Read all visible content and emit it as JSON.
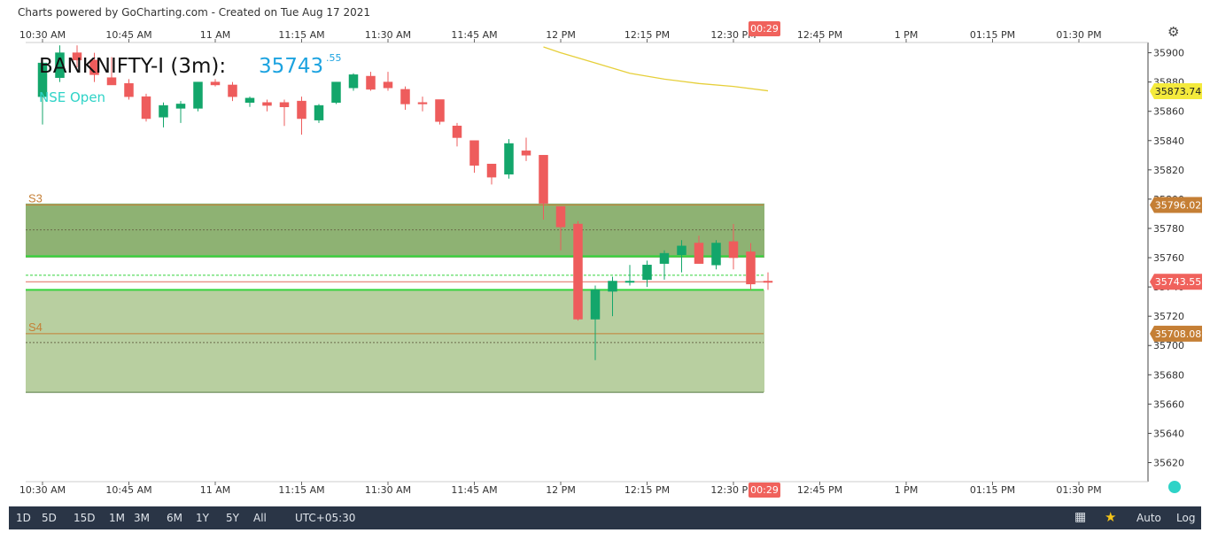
{
  "credit": "Charts powered by GoCharting.com - Created on Tue Aug 17 2021",
  "symbol": "BANKNIFTY-I (3m):",
  "price_main": "35743",
  "price_dec": ".55",
  "session_label": "NSE Open",
  "countdown": "00:29",
  "colors": {
    "up": "#13a66b",
    "down": "#ee5c5c",
    "ema": "#e6cf3a",
    "band": "#7aa55b",
    "level": "#c57f35",
    "grid_green": "#34d43c"
  },
  "toolbar": {
    "ranges": [
      "1D",
      "5D",
      "15D",
      "1M",
      "3M",
      "6M",
      "1Y",
      "5Y",
      "All"
    ],
    "timezone": "UTC+05:30",
    "auto": "Auto",
    "log": "Log",
    "grid_icon": "grid-icon",
    "star_icon": "star-icon"
  },
  "chart_data": {
    "type": "candlestick",
    "interval": "3m",
    "x_ticks": [
      "10:30 AM",
      "10:45 AM",
      "11 AM",
      "11:15 AM",
      "11:30 AM",
      "11:45 AM",
      "12 PM",
      "12:15 PM",
      "12:30 PM",
      "12:45 PM",
      "1 PM",
      "01:15 PM",
      "01:30 PM"
    ],
    "y_ticks": [
      35900,
      35880,
      35860,
      35840,
      35820,
      35800,
      35780,
      35760,
      35740,
      35720,
      35700,
      35680,
      35660,
      35640,
      35620
    ],
    "ylim": [
      35607,
      35907
    ],
    "candles": [
      {
        "t": "10:30",
        "o": 35870,
        "h": 35895,
        "l": 35851,
        "c": 35893
      },
      {
        "t": "10:33",
        "o": 35883,
        "h": 35905,
        "l": 35880,
        "c": 35900
      },
      {
        "t": "10:36",
        "o": 35900,
        "h": 35905,
        "l": 35890,
        "c": 35895
      },
      {
        "t": "10:39",
        "o": 35895,
        "h": 35900,
        "l": 35880,
        "c": 35885
      },
      {
        "t": "10:42",
        "o": 35883,
        "h": 35897,
        "l": 35878,
        "c": 35878
      },
      {
        "t": "10:45",
        "o": 35879,
        "h": 35882,
        "l": 35868,
        "c": 35870
      },
      {
        "t": "10:48",
        "o": 35870,
        "h": 35872,
        "l": 35853,
        "c": 35855
      },
      {
        "t": "10:51",
        "o": 35856,
        "h": 35866,
        "l": 35849,
        "c": 35864
      },
      {
        "t": "10:54",
        "o": 35862,
        "h": 35867,
        "l": 35852,
        "c": 35865
      },
      {
        "t": "10:57",
        "o": 35862,
        "h": 35880,
        "l": 35860,
        "c": 35880
      },
      {
        "t": "11:00",
        "o": 35880,
        "h": 35882,
        "l": 35877,
        "c": 35878
      },
      {
        "t": "11:03",
        "o": 35878,
        "h": 35880,
        "l": 35867,
        "c": 35870
      },
      {
        "t": "11:06",
        "o": 35866,
        "h": 35870,
        "l": 35863,
        "c": 35869
      },
      {
        "t": "11:09",
        "o": 35866,
        "h": 35868,
        "l": 35860,
        "c": 35864
      },
      {
        "t": "11:12",
        "o": 35866,
        "h": 35868,
        "l": 35850,
        "c": 35863
      },
      {
        "t": "11:15",
        "o": 35867,
        "h": 35870,
        "l": 35844,
        "c": 35855
      },
      {
        "t": "11:18",
        "o": 35854,
        "h": 35865,
        "l": 35852,
        "c": 35864
      },
      {
        "t": "11:21",
        "o": 35866,
        "h": 35880,
        "l": 35865,
        "c": 35880
      },
      {
        "t": "11:24",
        "o": 35876,
        "h": 35886,
        "l": 35874,
        "c": 35885
      },
      {
        "t": "11:27",
        "o": 35884,
        "h": 35887,
        "l": 35874,
        "c": 35875
      },
      {
        "t": "11:30",
        "o": 35880,
        "h": 35887,
        "l": 35874,
        "c": 35876
      },
      {
        "t": "11:33",
        "o": 35875,
        "h": 35877,
        "l": 35861,
        "c": 35865
      },
      {
        "t": "11:36",
        "o": 35866,
        "h": 35870,
        "l": 35860,
        "c": 35865
      },
      {
        "t": "11:39",
        "o": 35868,
        "h": 35868,
        "l": 35851,
        "c": 35853
      },
      {
        "t": "11:42",
        "o": 35850,
        "h": 35852,
        "l": 35836,
        "c": 35842
      },
      {
        "t": "11:45",
        "o": 35840,
        "h": 35840,
        "l": 35818,
        "c": 35823
      },
      {
        "t": "11:48",
        "o": 35824,
        "h": 35824,
        "l": 35810,
        "c": 35815
      },
      {
        "t": "11:51",
        "o": 35817,
        "h": 35841,
        "l": 35814,
        "c": 35838
      },
      {
        "t": "11:54",
        "o": 35833,
        "h": 35842,
        "l": 35826,
        "c": 35830
      },
      {
        "t": "11:57",
        "o": 35830,
        "h": 35830,
        "l": 35786,
        "c": 35797
      },
      {
        "t": "12:00",
        "o": 35795,
        "h": 35795,
        "l": 35765,
        "c": 35781
      },
      {
        "t": "12:03",
        "o": 35783,
        "h": 35785,
        "l": 35717,
        "c": 35718
      },
      {
        "t": "12:06",
        "o": 35718,
        "h": 35741,
        "l": 35690,
        "c": 35738
      },
      {
        "t": "12:09",
        "o": 35737,
        "h": 35747,
        "l": 35720,
        "c": 35744
      },
      {
        "t": "12:12",
        "o": 35744,
        "h": 35755,
        "l": 35741,
        "c": 35744
      },
      {
        "t": "12:15",
        "o": 35745,
        "h": 35758,
        "l": 35740,
        "c": 35755
      },
      {
        "t": "12:18",
        "o": 35756,
        "h": 35765,
        "l": 35745,
        "c": 35763
      },
      {
        "t": "12:21",
        "o": 35762,
        "h": 35772,
        "l": 35750,
        "c": 35768
      },
      {
        "t": "12:24",
        "o": 35770,
        "h": 35775,
        "l": 35756,
        "c": 35756
      },
      {
        "t": "12:27",
        "o": 35755,
        "h": 35772,
        "l": 35752,
        "c": 35770
      },
      {
        "t": "12:30",
        "o": 35771,
        "h": 35783,
        "l": 35752,
        "c": 35760
      },
      {
        "t": "12:33",
        "o": 35764,
        "h": 35770,
        "l": 35738,
        "c": 35742
      },
      {
        "t": "12:36",
        "o": 35744,
        "h": 35750,
        "l": 35738,
        "c": 35743.55
      }
    ],
    "ema": [
      [
        11.95,
        35904
      ],
      [
        12.0,
        35900
      ],
      [
        12.1,
        35893
      ],
      [
        12.2,
        35886
      ],
      [
        12.3,
        35882
      ],
      [
        12.4,
        35879
      ],
      [
        12.5,
        35877
      ],
      [
        12.6,
        35874
      ]
    ],
    "zones": [
      {
        "from": 35797,
        "to": 35760,
        "color": "#7aa55b"
      },
      {
        "from": 35738,
        "to": 35668,
        "color": "#b4cc9b"
      }
    ],
    "levels": [
      {
        "label": "S3",
        "value": 35796.02
      },
      {
        "label": "S4",
        "value": 35708.08
      }
    ],
    "green_lines": [
      35761,
      35748,
      35738
    ],
    "dotted_lines": [
      35779,
      35702
    ],
    "price_labels": [
      {
        "value": 35873.74,
        "text": "35873.74",
        "color": "#f4ea3c",
        "text_color": "#222"
      },
      {
        "value": 35796.02,
        "text": "35796.02",
        "color": "#c57f35",
        "text_color": "#fff"
      },
      {
        "value": 35743.55,
        "text": "35743.55",
        "color": "#f0625c",
        "text_color": "#fff"
      },
      {
        "value": 35708.08,
        "text": "35708.08",
        "color": "#c57f35",
        "text_color": "#fff"
      }
    ]
  }
}
